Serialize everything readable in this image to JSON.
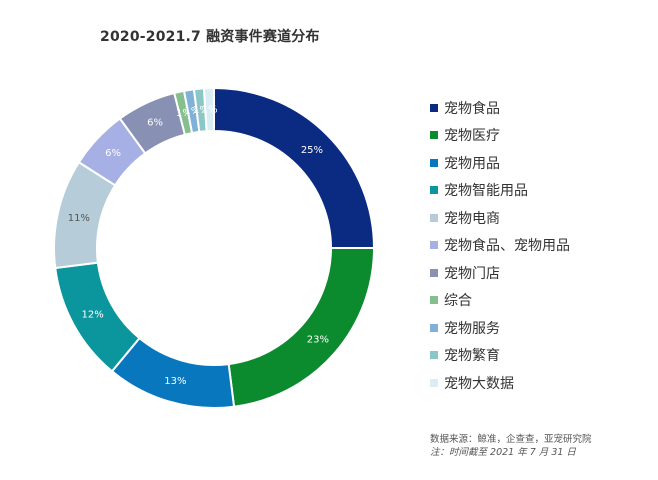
{
  "chart_data": {
    "type": "pie",
    "title": "2020-2021.7 融资事件赛道分布",
    "donut": true,
    "legend_position": "right",
    "categories": [
      "宠物食品",
      "宠物医疗",
      "宠物用品",
      "宠物智能用品",
      "宠物电商",
      "宠物食品、宠物用品",
      "宠物门店",
      "综合",
      "宠物服务",
      "宠物繁育",
      "宠物大数据"
    ],
    "values": [
      25,
      23,
      13,
      12,
      11,
      6,
      6,
      1,
      1,
      1,
      1
    ],
    "value_labels": [
      "25%",
      "23%",
      "13%",
      "12%",
      "11%",
      "6%",
      "6%",
      "1%",
      "1%",
      "1%",
      "1%"
    ],
    "colors": [
      "#0b2a82",
      "#0c8a2e",
      "#0877be",
      "#0b959c",
      "#b6cdd9",
      "#a6b0e4",
      "#8890b3",
      "#84bf8d",
      "#7fb1d9",
      "#8cc7c7",
      "#d9edf3"
    ],
    "label_colors": [
      "#ffffff",
      "#ffffff",
      "#ffffff",
      "#ffffff",
      "#555555",
      "#ffffff",
      "#ffffff",
      "#ffffff",
      "#ffffff",
      "#ffffff",
      "#ffffff"
    ]
  },
  "source": {
    "line1": "数据来源：鲸准，企查查，亚宠研究院",
    "line2": "注：时间截至 2021 年 7 月 31 日"
  }
}
